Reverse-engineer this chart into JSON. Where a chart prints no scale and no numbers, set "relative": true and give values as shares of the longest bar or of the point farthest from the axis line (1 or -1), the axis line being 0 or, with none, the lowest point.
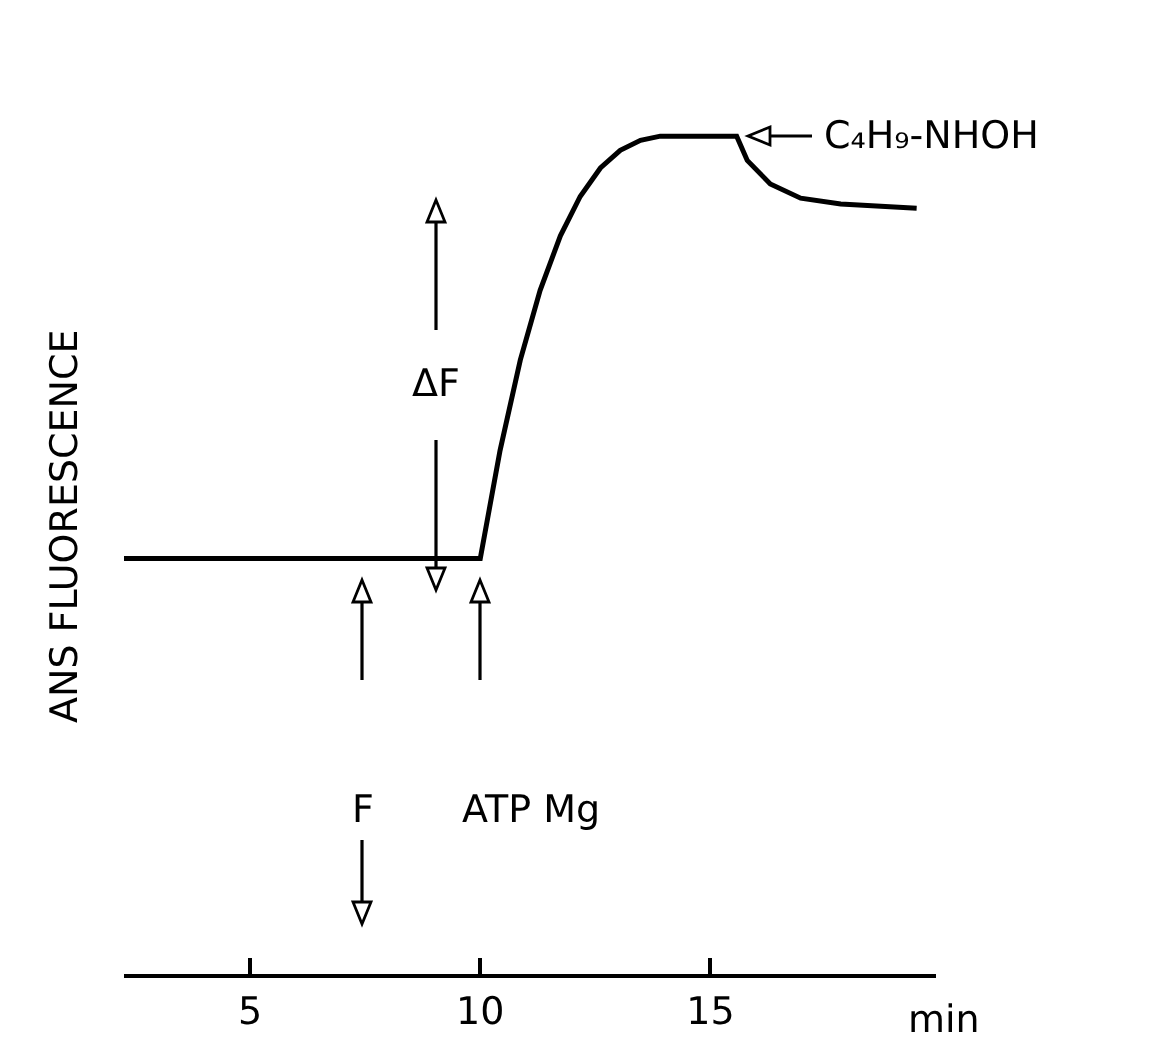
{
  "chart_data": {
    "type": "line",
    "relative": true,
    "ylabel": "ANS FLUORESCENCE",
    "xlabel": "min",
    "xlim": [
      2.26,
      19.9
    ],
    "xticks": [
      5,
      10,
      15
    ],
    "color": "#000000",
    "marker": "none",
    "line_style": "solid",
    "grid": false,
    "legend": false,
    "x": [
      2.26,
      10,
      10.43,
      10.87,
      11.3,
      11.74,
      12.17,
      12.61,
      13.04,
      13.48,
      13.91,
      15.57,
      15.8,
      16.3,
      16.96,
      17.83,
      19.48
    ],
    "values": [
      0.496,
      0.496,
      0.625,
      0.733,
      0.816,
      0.881,
      0.928,
      0.962,
      0.983,
      0.995,
      1,
      1,
      0.971,
      0.943,
      0.926,
      0.919,
      0.914
    ],
    "annotations": [
      "ΔF",
      "F",
      "ATP Mg",
      "C₄H₉-NHOH"
    ]
  }
}
